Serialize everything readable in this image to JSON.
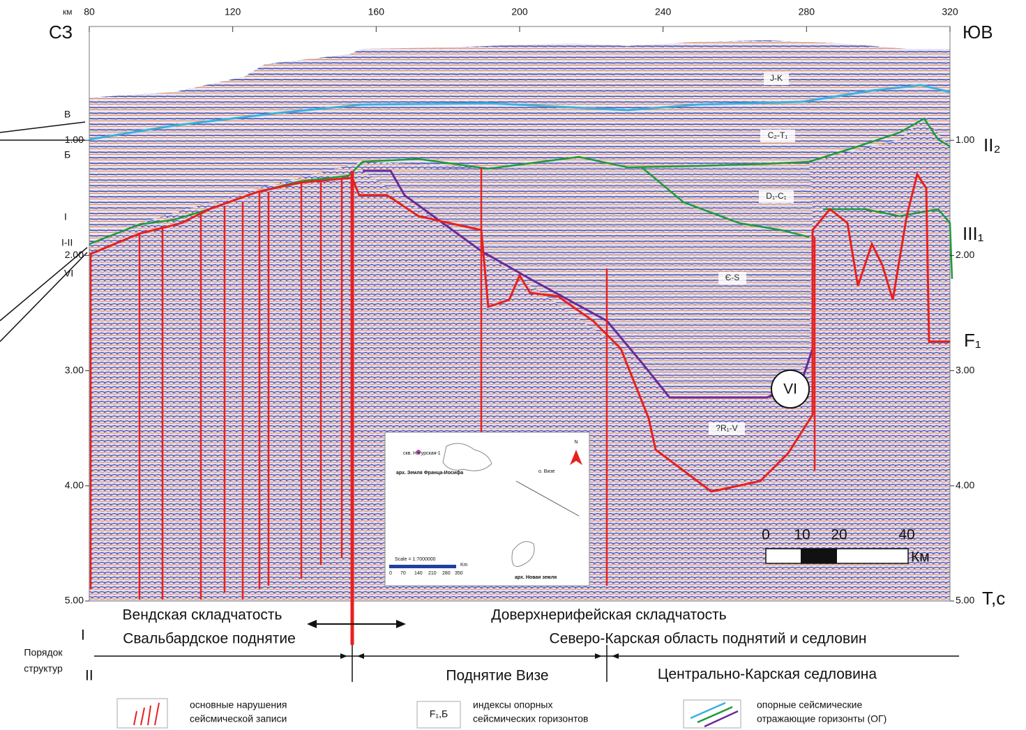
{
  "header": {
    "left_direction": "СЗ",
    "right_direction": "ЮВ",
    "distance_unit": "км",
    "time_unit": "Т,с"
  },
  "distance_axis": {
    "range": [
      80,
      320
    ],
    "ticks": [
      80,
      120,
      160,
      200,
      240,
      280,
      320
    ]
  },
  "time_axis": {
    "range": [
      0,
      5
    ],
    "ticks": [
      {
        "value": 1,
        "label": "1.00"
      },
      {
        "value": 2,
        "label": "2.00"
      },
      {
        "value": 3,
        "label": "3.00"
      },
      {
        "value": 4,
        "label": "4.00"
      },
      {
        "value": 5,
        "label": "5.00"
      }
    ]
  },
  "horizon_labels_left": [
    "В",
    "Б",
    "I",
    "I-II",
    "VI"
  ],
  "horizon_labels_right": [
    "II₂",
    "III₁",
    "F₁"
  ],
  "unit_labels": [
    "J-K",
    "C₂-T₁",
    "D₁-C₁",
    "Є-S",
    "?R₁-V"
  ],
  "marker": "VI",
  "scale_bar": {
    "ticks": [
      "0",
      "10",
      "20",
      "40"
    ],
    "unit": "Км"
  },
  "inset_map": {
    "well": "скв. Нагурская-1",
    "archipelago_1": "арх. Земля Франца-Иосифа",
    "north": "N",
    "island": "о. Визе",
    "scale": "Scale = 1:7000000",
    "scale_ticks": [
      "0",
      "70",
      "140",
      "210",
      "280",
      "350"
    ],
    "scale_unit": "Km",
    "archipelago_2": "арх. Новая земля"
  },
  "structures": {
    "folding_left": "Вендская складчатость",
    "folding_right": "Доверхнерифейская складчатость",
    "order_label": [
      "Порядок",
      "структур"
    ],
    "order_1": "I",
    "order_2": "II",
    "first_order": [
      "Свальбардское поднятие",
      "Северо-Карская область поднятий и седловин"
    ],
    "second_order": [
      "Поднятие Визе",
      "Центрально-Карская седловина"
    ]
  },
  "legend": [
    {
      "lines": [
        "основные нарушения",
        "сейсмической записи"
      ]
    },
    {
      "symbol": "F₁,Б",
      "lines": [
        "индексы   опорных",
        "сейсмических горизонтов"
      ]
    },
    {
      "lines": [
        "опорные сейсмические",
        "отражающие горизонты (ОГ)"
      ]
    }
  ]
}
